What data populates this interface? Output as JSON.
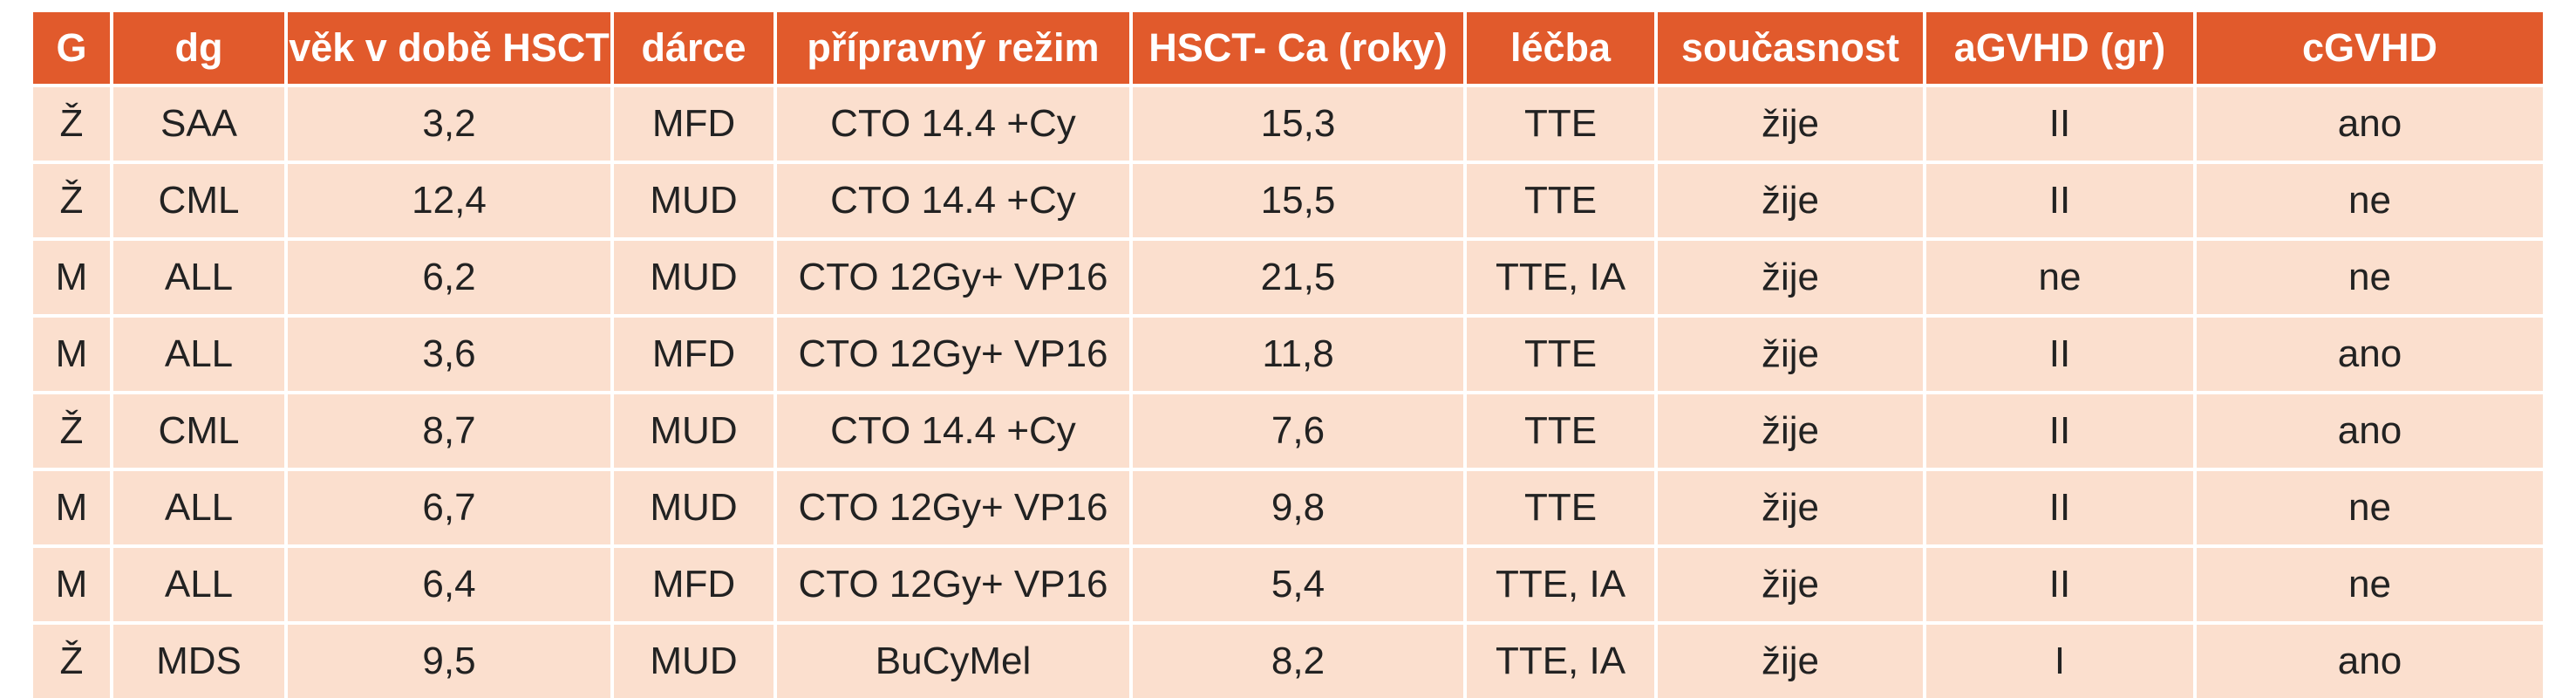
{
  "table": {
    "headers": [
      "G",
      "dg",
      "věk v době HSCT",
      "dárce",
      "přípravný režim",
      "HSCT- Ca (roky)",
      "léčba",
      "současnost",
      "aGVHD (gr)",
      "cGVHD"
    ],
    "rows": [
      [
        "Ž",
        "SAA",
        "3,2",
        "MFD",
        "CTO 14.4 +Cy",
        "15,3",
        "TTE",
        "žije",
        "II",
        "ano"
      ],
      [
        "Ž",
        "CML",
        "12,4",
        "MUD",
        "CTO 14.4 +Cy",
        "15,5",
        "TTE",
        "žije",
        "II",
        "ne"
      ],
      [
        "M",
        "ALL",
        "6,2",
        "MUD",
        "CTO 12Gy+ VP16",
        "21,5",
        "TTE, IA",
        "žije",
        "ne",
        "ne"
      ],
      [
        "M",
        "ALL",
        "3,6",
        "MFD",
        "CTO 12Gy+ VP16",
        "11,8",
        "TTE",
        "žije",
        "II",
        "ano"
      ],
      [
        "Ž",
        "CML",
        "8,7",
        "MUD",
        "CTO 14.4 +Cy",
        "7,6",
        "TTE",
        "žije",
        "II",
        "ano"
      ],
      [
        "M",
        "ALL",
        "6,7",
        "MUD",
        "CTO 12Gy+ VP16",
        "9,8",
        "TTE",
        "žije",
        "II",
        "ne"
      ],
      [
        "M",
        "ALL",
        "6,4",
        "MFD",
        "CTO 12Gy+ VP16",
        "5,4",
        "TTE, IA",
        "žije",
        "II",
        "ne"
      ],
      [
        "Ž",
        "MDS",
        "9,5",
        "MUD",
        "BuCyMel",
        "8,2",
        "TTE, IA",
        "žije",
        "I",
        "ano"
      ]
    ]
  },
  "colors": {
    "header_bg": "#e15a2c",
    "row_bg": "#fbdfce"
  }
}
